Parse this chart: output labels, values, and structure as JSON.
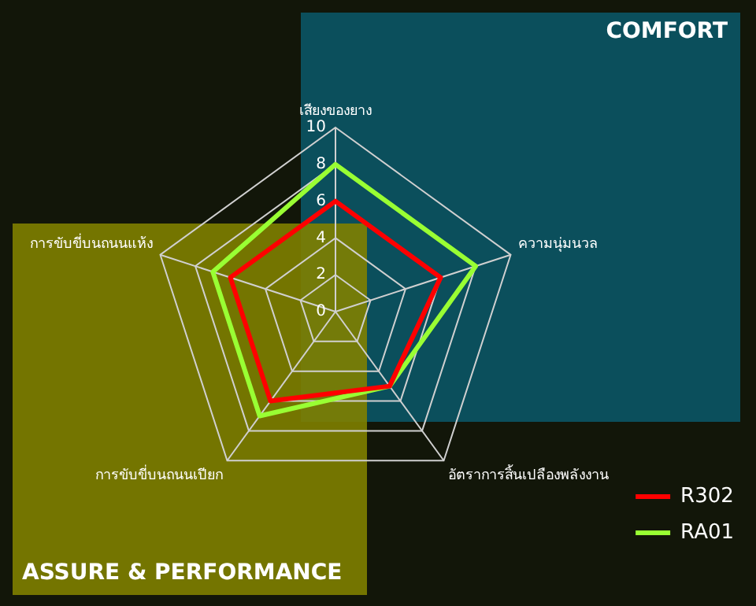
{
  "chart_data": {
    "type": "radar",
    "categories": [
      "เสียงของยาง",
      "ความนุ่มนวล",
      "อัตราการสิ้นเปลืองพลังงาน",
      "การขับขี่บนถนนเปียก",
      "การขับขี่บนถนนแห้ง"
    ],
    "series": [
      {
        "name": "R302",
        "color": "#ff0000",
        "values": [
          6,
          6,
          5,
          6,
          6
        ]
      },
      {
        "name": "RA01",
        "color": "#99ff33",
        "values": [
          8,
          8,
          5,
          7,
          7
        ]
      }
    ],
    "ylim": [
      0,
      10
    ],
    "yticks": [
      0,
      2,
      4,
      6,
      8,
      10
    ],
    "annotations": [
      "COMFORT",
      "ASSURE & PERFORMANCE"
    ],
    "grid": true,
    "legend": "bottom right",
    "marker": "none"
  }
}
